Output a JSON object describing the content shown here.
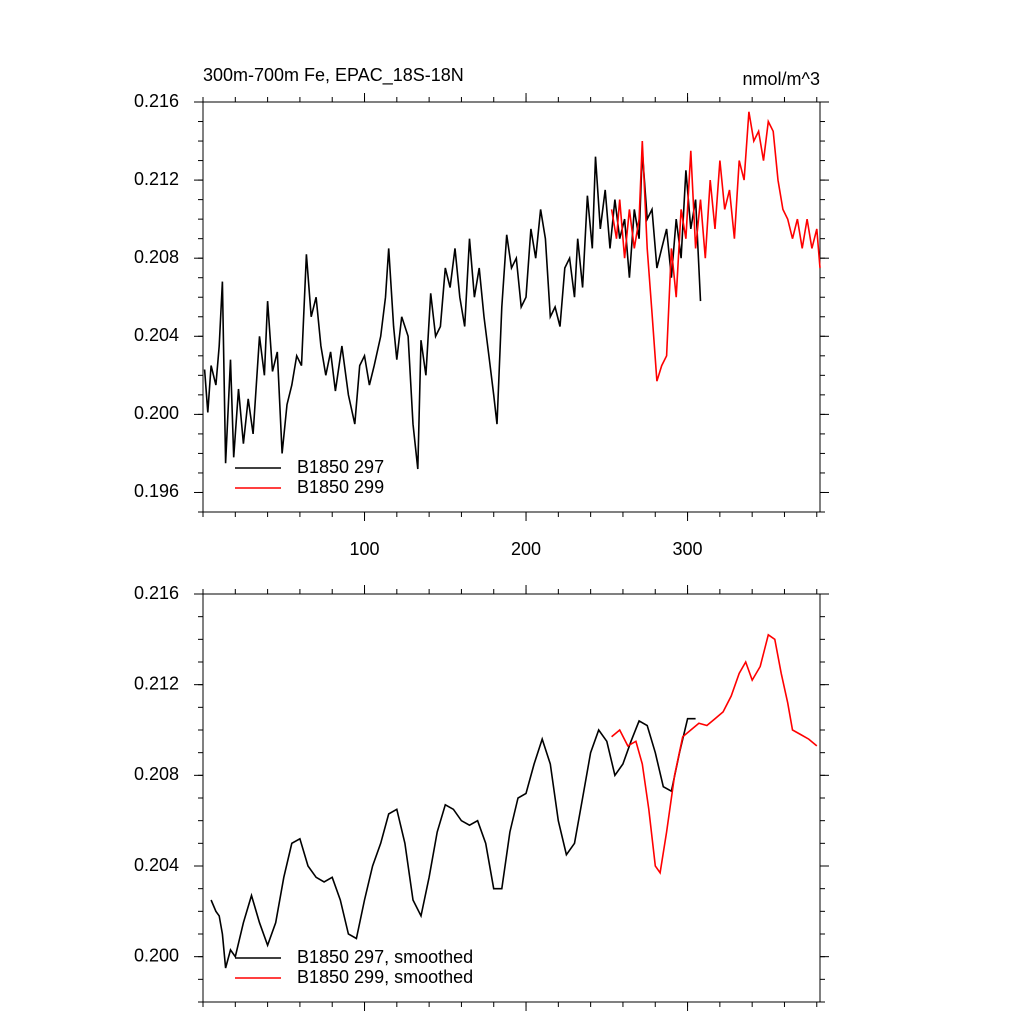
{
  "chart_data": [
    {
      "type": "line",
      "title": "300m-700m Fe, EPAC_18S-18N",
      "units_label": "nmol/m^3",
      "xlim": [
        0,
        382
      ],
      "xticks": [
        100,
        200,
        300
      ],
      "ylim": [
        0.195,
        0.216
      ],
      "yticks": [
        0.216,
        0.212,
        0.208,
        0.204,
        {
          "value": 0.2,
          "label": "0.200"
        },
        0.196
      ],
      "legend": "lower-left",
      "series": [
        {
          "name": "B1850 297",
          "color": "#000000",
          "x": [
            1,
            3,
            5,
            8,
            10,
            12,
            14,
            17,
            19,
            22,
            25,
            28,
            31,
            35,
            38,
            40,
            43,
            46,
            49,
            52,
            55,
            58,
            61,
            64,
            67,
            70,
            73,
            76,
            79,
            82,
            86,
            90,
            94,
            97,
            100,
            103,
            106,
            110,
            113,
            115,
            118,
            120,
            123,
            127,
            130,
            133,
            135,
            138,
            141,
            144,
            147,
            150,
            153,
            156,
            159,
            162,
            165,
            168,
            171,
            174,
            177,
            180,
            182,
            185,
            188,
            191,
            194,
            197,
            200,
            203,
            206,
            209,
            212,
            215,
            218,
            221,
            224,
            227,
            230,
            232,
            235,
            238,
            241,
            243,
            246,
            249,
            252,
            255,
            258,
            261,
            264,
            267,
            270,
            272,
            275,
            278,
            281,
            284,
            287,
            290,
            293,
            296,
            299,
            302,
            305,
            308
          ],
          "values": [
            0.2023,
            0.2001,
            0.2025,
            0.2015,
            0.2035,
            0.2068,
            0.1975,
            0.2028,
            0.1978,
            0.2013,
            0.1985,
            0.2008,
            0.199,
            0.204,
            0.202,
            0.2058,
            0.2022,
            0.2032,
            0.198,
            0.2005,
            0.2015,
            0.203,
            0.2025,
            0.2082,
            0.205,
            0.206,
            0.2035,
            0.202,
            0.2032,
            0.2012,
            0.2035,
            0.201,
            0.1995,
            0.2025,
            0.203,
            0.2015,
            0.2025,
            0.204,
            0.206,
            0.2085,
            0.2045,
            0.2028,
            0.205,
            0.204,
            0.1995,
            0.1972,
            0.2038,
            0.202,
            0.2062,
            0.204,
            0.2045,
            0.2075,
            0.2065,
            0.2085,
            0.206,
            0.2045,
            0.209,
            0.206,
            0.2075,
            0.205,
            0.203,
            0.201,
            0.1995,
            0.2055,
            0.2092,
            0.2075,
            0.208,
            0.2055,
            0.206,
            0.2095,
            0.208,
            0.2105,
            0.209,
            0.205,
            0.2055,
            0.2045,
            0.2075,
            0.208,
            0.206,
            0.209,
            0.2065,
            0.2112,
            0.2085,
            0.2132,
            0.2095,
            0.2115,
            0.2085,
            0.211,
            0.209,
            0.21,
            0.207,
            0.2105,
            0.209,
            0.2135,
            0.21,
            0.2105,
            0.2075,
            0.2085,
            0.2095,
            0.207,
            0.21,
            0.208,
            0.2125,
            0.2095,
            0.211,
            0.2058
          ]
        },
        {
          "name": "B1850 299",
          "color": "#ff0000",
          "x": [
            253,
            256,
            258,
            261,
            264,
            267,
            270,
            272,
            275,
            278,
            281,
            284,
            287,
            290,
            293,
            296,
            299,
            302,
            305,
            308,
            311,
            314,
            317,
            320,
            323,
            326,
            329,
            332,
            335,
            338,
            341,
            344,
            347,
            350,
            353,
            356,
            359,
            362,
            365,
            368,
            371,
            374,
            377,
            380,
            382
          ],
          "values": [
            0.2105,
            0.209,
            0.211,
            0.208,
            0.2105,
            0.2085,
            0.21,
            0.214,
            0.2085,
            0.2052,
            0.2017,
            0.2025,
            0.203,
            0.2085,
            0.206,
            0.2105,
            0.209,
            0.2135,
            0.2085,
            0.211,
            0.208,
            0.212,
            0.2095,
            0.213,
            0.2105,
            0.2115,
            0.209,
            0.213,
            0.212,
            0.2155,
            0.214,
            0.2145,
            0.213,
            0.215,
            0.2145,
            0.212,
            0.2105,
            0.21,
            0.209,
            0.21,
            0.2085,
            0.21,
            0.2085,
            0.2095,
            0.2075
          ]
        }
      ]
    },
    {
      "type": "line",
      "xlim": [
        0,
        382
      ],
      "xticks": [
        100,
        200,
        300
      ],
      "ylim": [
        0.198,
        0.216
      ],
      "yticks": [
        0.216,
        0.212,
        0.208,
        0.204,
        {
          "value": 0.2,
          "label": "0.200"
        }
      ],
      "legend": "lower-left",
      "series": [
        {
          "name": "B1850 297, smoothed",
          "color": "#000000",
          "x": [
            5,
            8,
            10,
            12,
            14,
            17,
            20,
            25,
            30,
            35,
            40,
            45,
            50,
            55,
            60,
            65,
            70,
            75,
            80,
            85,
            90,
            95,
            100,
            105,
            110,
            115,
            120,
            125,
            130,
            135,
            140,
            145,
            150,
            155,
            160,
            165,
            170,
            175,
            180,
            185,
            190,
            195,
            200,
            205,
            210,
            215,
            220,
            225,
            230,
            235,
            240,
            245,
            250,
            255,
            260,
            265,
            270,
            275,
            280,
            285,
            290,
            295,
            300,
            305
          ],
          "values": [
            0.2025,
            0.202,
            0.2018,
            0.201,
            0.1995,
            0.2003,
            0.2,
            0.2015,
            0.2027,
            0.2015,
            0.2005,
            0.2015,
            0.2035,
            0.205,
            0.2052,
            0.204,
            0.2035,
            0.2033,
            0.2035,
            0.2025,
            0.201,
            0.2008,
            0.2025,
            0.204,
            0.205,
            0.2063,
            0.2065,
            0.205,
            0.2025,
            0.2018,
            0.2035,
            0.2055,
            0.2067,
            0.2065,
            0.206,
            0.2058,
            0.206,
            0.205,
            0.203,
            0.203,
            0.2055,
            0.207,
            0.2072,
            0.2085,
            0.2096,
            0.2085,
            0.206,
            0.2045,
            0.205,
            0.207,
            0.209,
            0.21,
            0.2095,
            0.208,
            0.2085,
            0.2095,
            0.2104,
            0.2102,
            0.209,
            0.2075,
            0.2073,
            0.209,
            0.2105,
            0.2105
          ]
        },
        {
          "name": "B1850 299, smoothed",
          "color": "#ff0000",
          "x": [
            253,
            258,
            263,
            268,
            272,
            276,
            280,
            283,
            287,
            292,
            297,
            302,
            307,
            312,
            317,
            322,
            327,
            332,
            336,
            340,
            345,
            350,
            354,
            358,
            362,
            365,
            370,
            375,
            380
          ],
          "values": [
            0.2097,
            0.21,
            0.2093,
            0.2095,
            0.2085,
            0.2065,
            0.204,
            0.2037,
            0.2055,
            0.208,
            0.2097,
            0.21,
            0.2103,
            0.2102,
            0.2105,
            0.2108,
            0.2115,
            0.2125,
            0.213,
            0.2122,
            0.2128,
            0.2142,
            0.214,
            0.2125,
            0.2112,
            0.21,
            0.2098,
            0.2096,
            0.2093
          ]
        }
      ]
    }
  ]
}
